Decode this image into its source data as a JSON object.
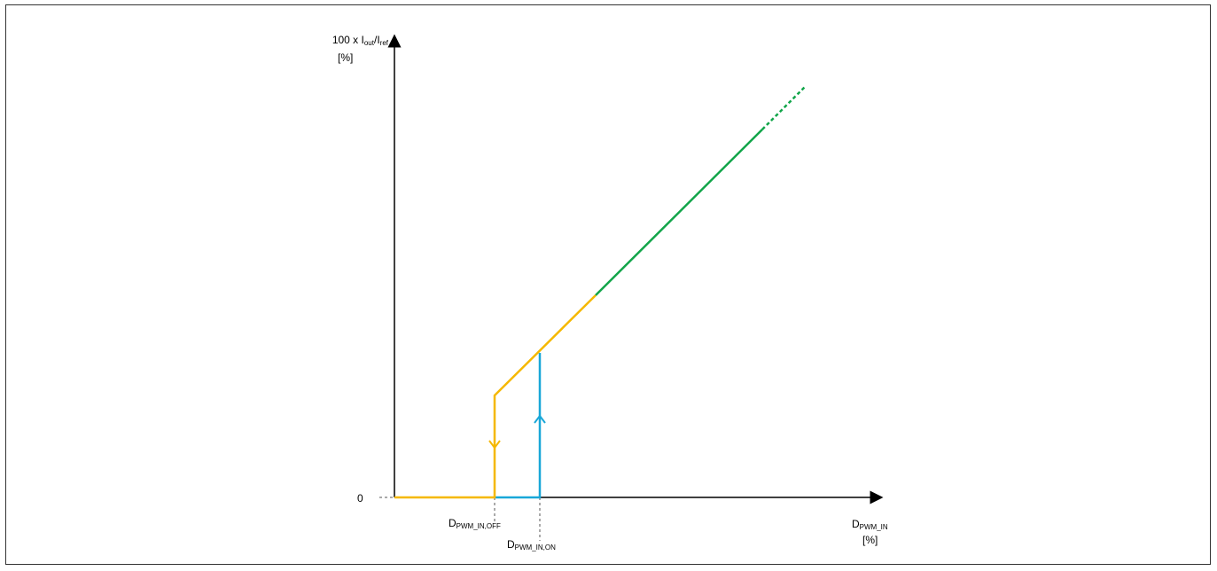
{
  "diagram": {
    "y_axis": {
      "label_prefix": "100 x I",
      "label_sub_out": "out",
      "label_slash": "/I",
      "label_sub_ref": "ref",
      "unit": "[%]",
      "zero_tick": "0"
    },
    "x_axis": {
      "label_main": "D",
      "label_sub": "PWM_IN",
      "unit": "[%]"
    },
    "markers": {
      "off": {
        "main": "D",
        "sub": "PWM_IN,OFF"
      },
      "on": {
        "main": "D",
        "sub": "PWM_IN,ON"
      }
    },
    "colors": {
      "axis": "#000000",
      "turn_off_path": "#f5b800",
      "turn_on_path": "#19a7d8",
      "linear_region": "#12a54a",
      "guides": "#555555"
    }
  }
}
